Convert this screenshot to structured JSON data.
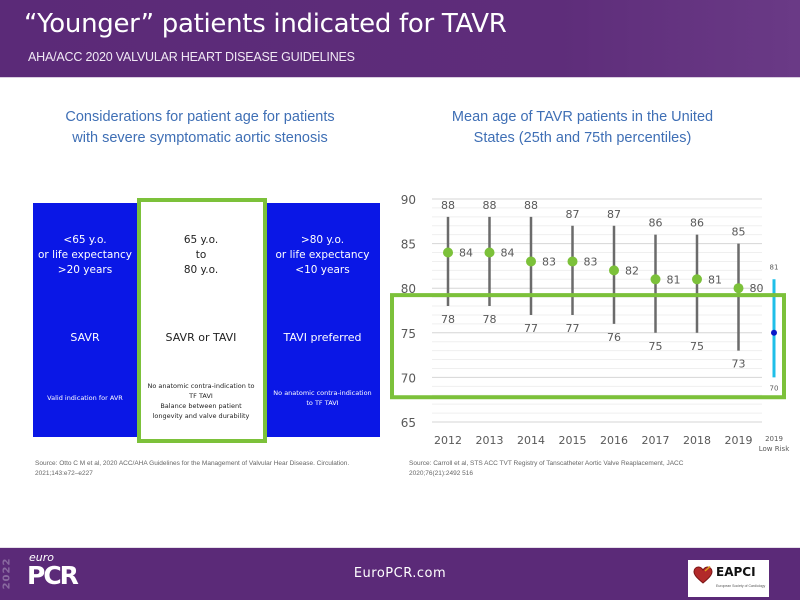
{
  "header": {
    "title": "“Younger” patients indicated for TAVR",
    "subtitle": "AHA/ACC 2020 VALVULAR HEART DISEASE GUIDELINES"
  },
  "left_panel": {
    "title_line1": "Considerations for patient age for patients",
    "title_line2": "with severe symptomatic aortic stenosis",
    "columns": [
      {
        "age_lines": [
          "<65 y.o.",
          "or life expectancy",
          ">20 years"
        ],
        "recommendation": "SAVR",
        "note_lines": [
          "Valid indication for AVR"
        ]
      },
      {
        "age_lines": [
          "65 y.o.",
          "to",
          "80 y.o."
        ],
        "recommendation": "SAVR or TAVI",
        "note_lines": [
          "No anatomic contra-indication  to",
          "TF TAVI",
          "Balance  between patient",
          "longevity and valve durability"
        ]
      },
      {
        "age_lines": [
          ">80 y.o.",
          "or life expectancy",
          "<10 years"
        ],
        "recommendation": "TAVI preferred",
        "note_lines": [
          "No anatomic contra-indication",
          "to TF TAVI"
        ]
      }
    ],
    "source_line1": "Source:  Otto C M et al, 2020 ACC/AHA Guidelines for the Management of Valvular Hear Disease. Circulation.",
    "source_line2": "2021;143:e72–e227"
  },
  "right_panel": {
    "title_line1": "Mean age of TAVR patients in the United",
    "title_line2": "States (25th and 75th percentiles)",
    "source_line1": "Source: Carroll et al, STS ACC TVT Registry of Tanscatheter Aortic Valve Reaplacement, JACC",
    "source_line2": "2020;76(21):2492 516"
  },
  "chart_data": {
    "type": "scatter",
    "title": "Mean age of TAVR patients in the United States (25th and 75th percentiles)",
    "xlabel": "",
    "ylabel": "",
    "ylim": [
      65,
      90
    ],
    "yticks": [
      65,
      70,
      75,
      80,
      85,
      90
    ],
    "grid": true,
    "categories": [
      "2012",
      "2013",
      "2014",
      "2015",
      "2016",
      "2017",
      "2018",
      "2019"
    ],
    "series": [
      {
        "name": "Mean age",
        "values": [
          84,
          84,
          83,
          83,
          82,
          81,
          81,
          80
        ],
        "color": "#7cc13a"
      },
      {
        "name": "75th percentile",
        "values": [
          88,
          88,
          88,
          87,
          87,
          86,
          86,
          85
        ],
        "color": "#6b6b6b"
      },
      {
        "name": "25th percentile",
        "values": [
          78,
          78,
          77,
          77,
          76,
          75,
          75,
          73
        ],
        "color": "#6b6b6b"
      }
    ],
    "extra": {
      "label_line1": "2019",
      "label_line2": "Low Risk",
      "mean": 75,
      "high": 81,
      "low": 70,
      "high_label": "81",
      "low_label": "70",
      "bar_color": "#1fbfe8",
      "dot_color": "#0a17c8"
    },
    "highlight_range": [
      68,
      79
    ],
    "highlight_color": "#7cc13a"
  },
  "footer": {
    "logo_year": "2022",
    "logo_euro": "euro",
    "logo_pcr": "PCR",
    "url": "EuroPCR.com",
    "partner_name": "EAPCI",
    "partner_sub": "European Society of Cardiology"
  }
}
